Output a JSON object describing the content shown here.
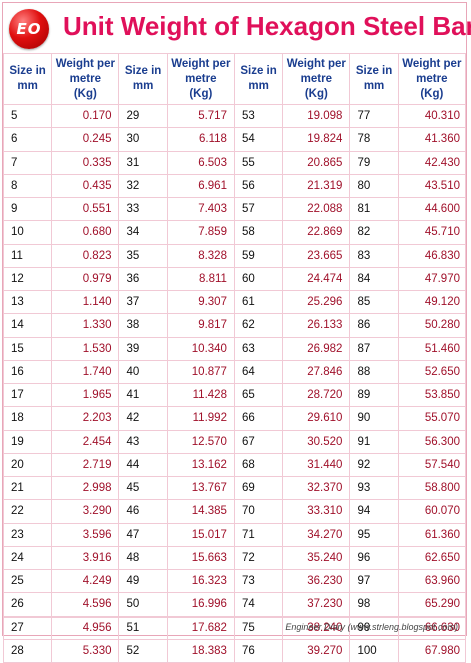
{
  "header": {
    "logo_text": "EO",
    "title": "Unit Weight of Hexagon Steel Bar"
  },
  "columns": {
    "size": "Size in mm",
    "weight_line1": "Weight per",
    "weight_line2": "metre",
    "weight_line3": "(Kg)",
    "size_line1": "Size in",
    "size_line2": "mm"
  },
  "table": {
    "groups": [
      {
        "sizes": [
          "5",
          "6",
          "7",
          "8",
          "9",
          "10",
          "11",
          "12",
          "13",
          "14",
          "15",
          "16",
          "17",
          "18",
          "19",
          "20",
          "21",
          "22",
          "23",
          "24",
          "25",
          "26",
          "27",
          "28"
        ],
        "weights": [
          "0.170",
          "0.245",
          "0.335",
          "0.435",
          "0.551",
          "0.680",
          "0.823",
          "0.979",
          "1.140",
          "1.330",
          "1.530",
          "1.740",
          "1.965",
          "2.203",
          "2.454",
          "2.719",
          "2.998",
          "3.290",
          "3.596",
          "3.916",
          "4.249",
          "4.596",
          "4.956",
          "5.330"
        ]
      },
      {
        "sizes": [
          "29",
          "30",
          "31",
          "32",
          "33",
          "34",
          "35",
          "36",
          "37",
          "38",
          "39",
          "40",
          "41",
          "42",
          "43",
          "44",
          "45",
          "46",
          "47",
          "48",
          "49",
          "50",
          "51",
          "52"
        ],
        "weights": [
          "5.717",
          "6.118",
          "6.503",
          "6.961",
          "7.403",
          "7.859",
          "8.328",
          "8.811",
          "9.307",
          "9.817",
          "10.340",
          "10.877",
          "11.428",
          "11.992",
          "12.570",
          "13.162",
          "13.767",
          "14.385",
          "15.017",
          "15.663",
          "16.323",
          "16.996",
          "17.682",
          "18.383"
        ]
      },
      {
        "sizes": [
          "53",
          "54",
          "55",
          "56",
          "57",
          "58",
          "59",
          "60",
          "61",
          "62",
          "63",
          "64",
          "65",
          "66",
          "67",
          "68",
          "69",
          "70",
          "71",
          "72",
          "73",
          "74",
          "75",
          "76"
        ],
        "weights": [
          "19.098",
          "19.824",
          "20.865",
          "21.319",
          "22.088",
          "22.869",
          "23.665",
          "24.474",
          "25.296",
          "26.133",
          "26.982",
          "27.846",
          "28.720",
          "29.610",
          "30.520",
          "31.440",
          "32.370",
          "33.310",
          "34.270",
          "35.240",
          "36.230",
          "37.230",
          "38.240",
          "39.270"
        ]
      },
      {
        "sizes": [
          "77",
          "78",
          "79",
          "80",
          "81",
          "82",
          "83",
          "84",
          "85",
          "86",
          "87",
          "88",
          "89",
          "90",
          "91",
          "92",
          "93",
          "94",
          "95",
          "96",
          "97",
          "98",
          "99",
          "100"
        ],
        "weights": [
          "40.310",
          "41.360",
          "42.430",
          "43.510",
          "44.600",
          "45.710",
          "46.830",
          "47.970",
          "49.120",
          "50.280",
          "51.460",
          "52.650",
          "53.850",
          "55.070",
          "56.300",
          "57.540",
          "58.800",
          "60.070",
          "61.360",
          "62.650",
          "63.960",
          "65.290",
          "66.630",
          "67.980"
        ]
      }
    ]
  },
  "footer": {
    "credit": "Engineer Diary (www.strleng.blogspot.com)"
  }
}
